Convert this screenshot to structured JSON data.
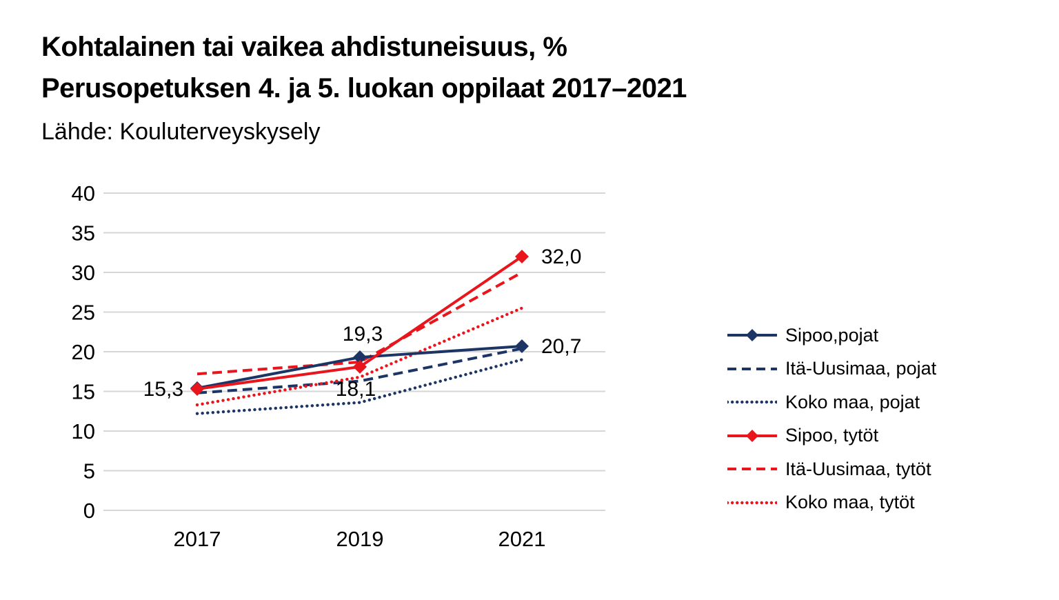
{
  "colors": {
    "navy": "#1c3565",
    "red": "#e8151d",
    "gridline": "#d6d6d6",
    "text": "#000000",
    "background": "#ffffff"
  },
  "chart_data": {
    "type": "line",
    "title_lines": [
      "Kohtalainen tai vaikea ahdistuneisuus, %",
      "Perusopetuksen 4. ja 5. luokan oppilaat 2017–2021"
    ],
    "source": "Lähde: Kouluterveyskysely",
    "categories": [
      "2017",
      "2019",
      "2021"
    ],
    "series": [
      {
        "name": "Sipoo,pojat",
        "values": [
          15.4,
          19.3,
          20.7
        ],
        "color": "navy",
        "style": "solid",
        "marker": "diamond"
      },
      {
        "name": "Itä-Uusimaa, pojat",
        "values": [
          14.8,
          16.3,
          20.4
        ],
        "color": "navy",
        "style": "dashed",
        "marker": "none"
      },
      {
        "name": "Koko maa, pojat",
        "values": [
          12.2,
          13.6,
          19.0
        ],
        "color": "navy",
        "style": "dotted",
        "marker": "none"
      },
      {
        "name": "Sipoo, tytöt",
        "values": [
          15.3,
          18.1,
          32.0
        ],
        "color": "red",
        "style": "solid",
        "marker": "diamond"
      },
      {
        "name": "Itä-Uusimaa, tytöt",
        "values": [
          17.2,
          18.7,
          30.0
        ],
        "color": "red",
        "style": "dashed",
        "marker": "none"
      },
      {
        "name": "Koko maa, tytöt",
        "values": [
          13.3,
          16.8,
          25.5
        ],
        "color": "red",
        "style": "dotted",
        "marker": "none"
      }
    ],
    "ylim": [
      0,
      40
    ],
    "yticks": [
      0,
      5,
      10,
      15,
      20,
      25,
      30,
      35,
      40
    ],
    "xlabel": "",
    "ylabel": "",
    "grid": "horizontal-only",
    "legend_position": "right",
    "number_format": "decimal-comma",
    "annotations": [
      {
        "text": "15,3",
        "x": "2017",
        "series": "Sipoo, tytöt",
        "position": "left"
      },
      {
        "text": "19,3",
        "x": "2019",
        "series": "Sipoo,pojat",
        "position": "above"
      },
      {
        "text": "18,1",
        "x": "2019",
        "series": "Sipoo, tytöt",
        "position": "below"
      },
      {
        "text": "32,0",
        "x": "2021",
        "series": "Sipoo, tytöt",
        "position": "right"
      },
      {
        "text": "20,7",
        "x": "2021",
        "series": "Sipoo,pojat",
        "position": "right"
      }
    ]
  }
}
